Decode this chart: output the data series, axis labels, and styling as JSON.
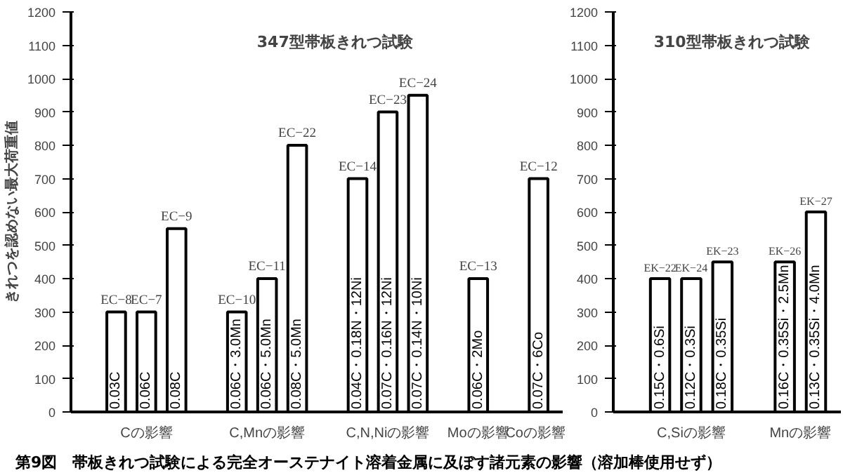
{
  "chart_data": [
    {
      "type": "bar",
      "title": "347型帯板きれつ試験",
      "ylabel": "きれつを認めない最大荷重値",
      "color": "#ffffff",
      "ylim": [
        0,
        1200
      ],
      "yticks": [
        0,
        100,
        200,
        300,
        400,
        500,
        600,
        700,
        800,
        900,
        1000,
        1100,
        1200
      ],
      "tick_labels": "y",
      "grid": false,
      "categories": [
        null,
        "0.03C",
        "0.06C",
        "0.08C",
        null,
        "0.06C・3.0Mn",
        "0.06C・5.0Mn",
        "0.08C・5.0Mn",
        null,
        "0.04C・0.18N・12Ni",
        "0.07C・0.16N・12Ni",
        "0.07C・0.14N・10Ni",
        null,
        "0.06C・2Mo",
        null,
        "0.07C・6Co"
      ],
      "values": [
        null,
        300,
        300,
        550,
        null,
        300,
        400,
        800,
        null,
        700,
        900,
        950,
        null,
        400,
        null,
        700
      ],
      "annotations": [
        {
          "text": "EC−8",
          "x": "0.03C",
          "y": 300
        },
        {
          "text": "EC−7",
          "x": "0.06C",
          "y": 300
        },
        {
          "text": "EC−9",
          "x": "0.08C",
          "y": 550
        },
        {
          "text": "EC−10",
          "x": "0.06C・3.0Mn",
          "y": 300
        },
        {
          "text": "EC−11",
          "x": "0.06C・5.0Mn",
          "y": 400
        },
        {
          "text": "EC−22",
          "x": "0.08C・5.0Mn",
          "y": 800
        },
        {
          "text": "EC−14",
          "x": "0.04C・0.18N・12Ni",
          "y": 700
        },
        {
          "text": "EC−23",
          "x": "0.07C・0.16N・12Ni",
          "y": 900
        },
        {
          "text": "EC−24",
          "x": "0.07C・0.14N・10Ni",
          "y": 950
        },
        {
          "text": "EC−13",
          "x": "0.06C・2Mo",
          "y": 400
        },
        {
          "text": "EC−12",
          "x": "0.07C・6Co",
          "y": 700
        },
        "Cの影響",
        "C,Mnの影響",
        "C,N,Niの影響",
        "Moの影響",
        "Coの影響",
        "第9図　帯板きれつ試験による完全オーステナイト溶着金属に及ぼす諸元素の影響（溶加棒使用せず）"
      ]
    },
    {
      "type": "bar",
      "title": "310型帯板きれつ試験",
      "color": "#ffffff",
      "ylim": [
        0,
        1200
      ],
      "yticks": [
        0,
        100,
        200,
        300,
        400,
        500,
        600,
        700,
        800,
        900,
        1000,
        1100,
        1200
      ],
      "tick_labels": "y",
      "grid": false,
      "categories": [
        null,
        "0.15C・0.6Si",
        "0.12C・0.3Si",
        "0.18C・0.35Si",
        null,
        "0.16C・0.35Si・2.5Mn",
        "0.13C・0.35Si・4.0Mn"
      ],
      "values": [
        null,
        400,
        400,
        450,
        null,
        450,
        600
      ],
      "annotations": [
        {
          "text": "EK−22",
          "x": "0.15C・0.6Si",
          "y": 400
        },
        {
          "text": "EK−24",
          "x": "0.12C・0.3Si",
          "y": 400
        },
        {
          "text": "EK−23",
          "x": "0.18C・0.35Si",
          "y": 450
        },
        {
          "text": "EK−26",
          "x": "0.16C・0.35Si・2.5Mn",
          "y": 450
        },
        {
          "text": "EK−27",
          "x": "0.13C・0.35Si・4.0Mn",
          "y": 600
        },
        "C,Siの影響",
        "Mnの影響"
      ]
    }
  ]
}
